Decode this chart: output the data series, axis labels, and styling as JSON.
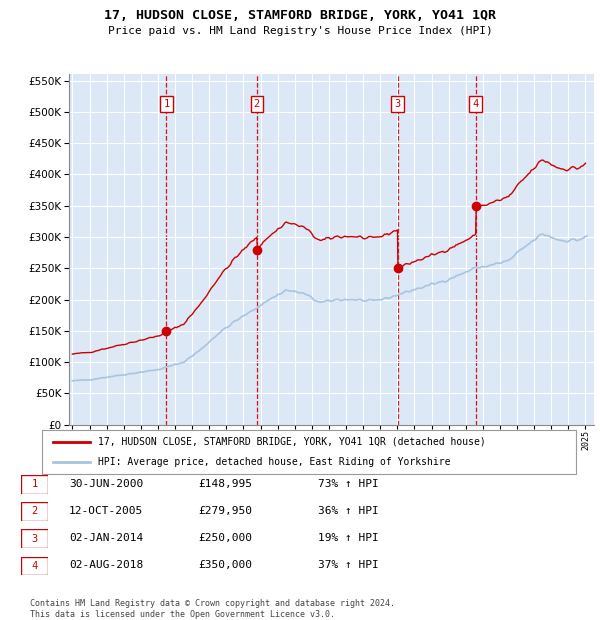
{
  "title": "17, HUDSON CLOSE, STAMFORD BRIDGE, YORK, YO41 1QR",
  "subtitle": "Price paid vs. HM Land Registry's House Price Index (HPI)",
  "legend_label_red": "17, HUDSON CLOSE, STAMFORD BRIDGE, YORK, YO41 1QR (detached house)",
  "legend_label_blue": "HPI: Average price, detached house, East Riding of Yorkshire",
  "footer": "Contains HM Land Registry data © Crown copyright and database right 2024.\nThis data is licensed under the Open Government Licence v3.0.",
  "transactions": [
    {
      "num": 1,
      "date": "30-JUN-2000",
      "year": 2000.5,
      "price": 148995,
      "pct": "73%",
      "dir": "↑"
    },
    {
      "num": 2,
      "date": "12-OCT-2005",
      "year": 2005.78,
      "price": 279950,
      "pct": "36%",
      "dir": "↑"
    },
    {
      "num": 3,
      "date": "02-JAN-2014",
      "year": 2014.01,
      "price": 250000,
      "pct": "19%",
      "dir": "↑"
    },
    {
      "num": 4,
      "date": "02-AUG-2018",
      "year": 2018.58,
      "price": 350000,
      "pct": "37%",
      "dir": "↑"
    }
  ],
  "hpi_color": "#a8c4e0",
  "price_color": "#cc0000",
  "background_color": "#dce8f5",
  "grid_color": "#ffffff",
  "ylim": [
    0,
    560000
  ],
  "yticks": [
    0,
    50000,
    100000,
    150000,
    200000,
    250000,
    300000,
    350000,
    400000,
    450000,
    500000,
    550000
  ],
  "xmin": 1994.8,
  "xmax": 2025.5
}
